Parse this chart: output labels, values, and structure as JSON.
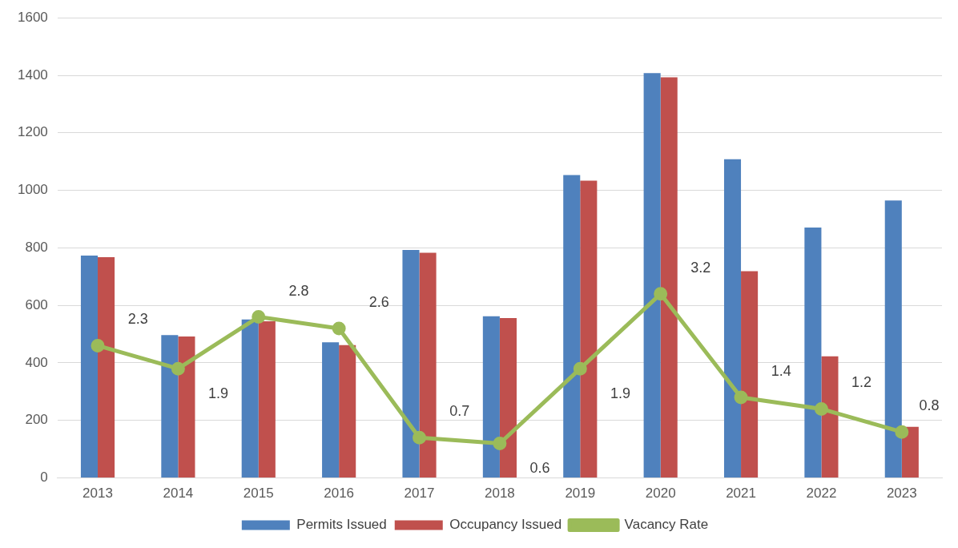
{
  "chart_data": {
    "type": "bar",
    "categories": [
      "2013",
      "2014",
      "2015",
      "2016",
      "2017",
      "2018",
      "2019",
      "2020",
      "2021",
      "2022",
      "2023"
    ],
    "series": [
      {
        "name": "Permits Issued",
        "color": "#4f81bd",
        "values": [
          773,
          497,
          551,
          472,
          793,
          562,
          1053,
          1408,
          1108,
          871,
          965
        ]
      },
      {
        "name": "Occupancy Issued",
        "color": "#c0504d",
        "values": [
          768,
          492,
          545,
          462,
          783,
          556,
          1034,
          1393,
          719,
          423,
          178
        ]
      },
      {
        "name": "Vacancy Rate",
        "type": "line",
        "axis": "y2",
        "color": "#9bbb59",
        "marker": "circle",
        "values": [
          2.3,
          1.9,
          2.8,
          2.6,
          0.7,
          0.6,
          1.9,
          3.2,
          1.4,
          1.2,
          0.8
        ],
        "value_labels": [
          "2.3",
          "1.9",
          "2.8",
          "2.6",
          "0.7",
          "0.6",
          "1.9",
          "3.2",
          "1.4",
          "1.2",
          "0.8"
        ]
      }
    ],
    "ylim": [
      0,
      1600
    ],
    "yticks": [
      0,
      200,
      400,
      600,
      800,
      1000,
      1200,
      1400,
      1600
    ],
    "y2lim": [
      0,
      8
    ],
    "grid": "y",
    "legend": "bottom"
  }
}
